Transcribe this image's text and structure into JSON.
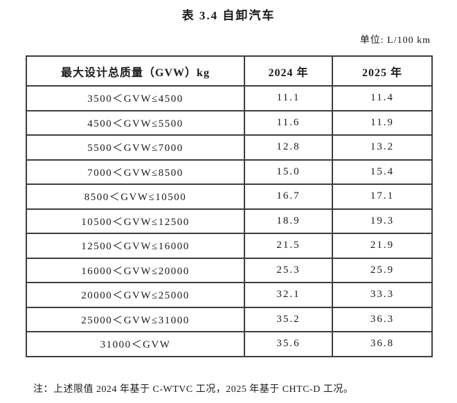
{
  "title": "表 3.4 自卸汽车",
  "unit_label": "单位: L/100 km",
  "chart_data": {
    "type": "table",
    "title": "表 3.4 自卸汽车",
    "unit": "L/100 km",
    "headers": [
      "最大设计总质量（GVW）kg",
      "2024 年",
      "2025 年"
    ],
    "rows": [
      {
        "range": "3500＜GVW≤4500",
        "y2024": "11.1",
        "y2025": "11.4"
      },
      {
        "range": "4500＜GVW≤5500",
        "y2024": "11.6",
        "y2025": "11.9"
      },
      {
        "range": "5500＜GVW≤7000",
        "y2024": "12.8",
        "y2025": "13.2"
      },
      {
        "range": "7000＜GVW≤8500",
        "y2024": "15.0",
        "y2025": "15.4"
      },
      {
        "range": "8500＜GVW≤10500",
        "y2024": "16.7",
        "y2025": "17.1"
      },
      {
        "range": "10500＜GVW≤12500",
        "y2024": "18.9",
        "y2025": "19.3"
      },
      {
        "range": "12500＜GVW≤16000",
        "y2024": "21.5",
        "y2025": "21.9"
      },
      {
        "range": "16000＜GVW≤20000",
        "y2024": "25.3",
        "y2025": "25.9"
      },
      {
        "range": "20000＜GVW≤25000",
        "y2024": "32.1",
        "y2025": "33.3"
      },
      {
        "range": "25000＜GVW≤31000",
        "y2024": "35.2",
        "y2025": "36.3"
      },
      {
        "range": "31000＜GVW",
        "y2024": "35.6",
        "y2025": "36.8"
      }
    ]
  },
  "note": "注：上述限值 2024 年基于 C-WTVC 工况，2025 年基于 CHTC-D 工况。"
}
